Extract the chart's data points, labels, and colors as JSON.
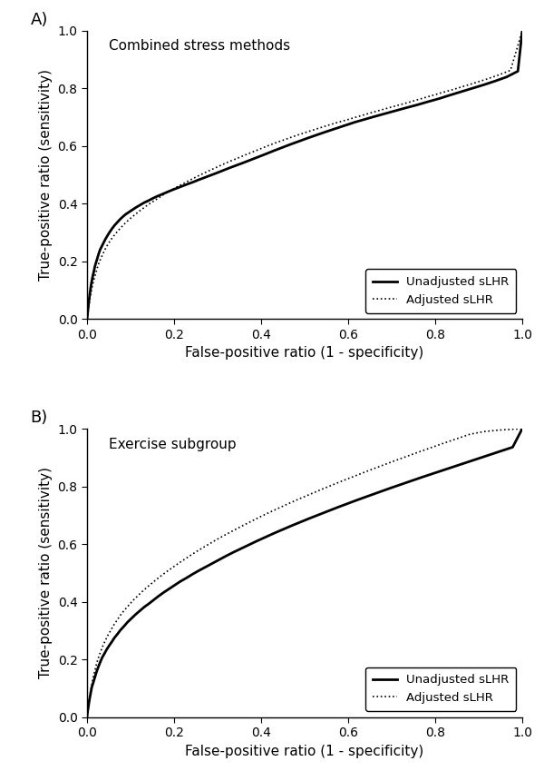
{
  "panel_A_title": "Combined stress methods",
  "panel_B_title": "Exercise subgroup",
  "xlabel": "False-positive ratio (1 - specificity)",
  "ylabel": "True-positive ratio (sensitivity)",
  "legend_unadj": "Unadjusted sLHR",
  "legend_adj": "Adjusted sLHR",
  "panel_label_A": "A)",
  "panel_label_B": "B)",
  "xlim": [
    0.0,
    1.0
  ],
  "ylim": [
    0.0,
    1.0
  ],
  "xticks": [
    0.0,
    0.2,
    0.4,
    0.6,
    0.8,
    1.0
  ],
  "yticks": [
    0.0,
    0.2,
    0.4,
    0.6,
    0.8,
    1.0
  ],
  "background_color": "#ffffff",
  "A_unadj_fpr": [
    0.0,
    0.002,
    0.004,
    0.006,
    0.008,
    0.01,
    0.013,
    0.016,
    0.018,
    0.021,
    0.024,
    0.027,
    0.03,
    0.034,
    0.038,
    0.042,
    0.047,
    0.052,
    0.057,
    0.063,
    0.069,
    0.075,
    0.082,
    0.089,
    0.097,
    0.105,
    0.113,
    0.122,
    0.131,
    0.141,
    0.151,
    0.161,
    0.172,
    0.183,
    0.194,
    0.206,
    0.218,
    0.23,
    0.243,
    0.256,
    0.27,
    0.284,
    0.298,
    0.313,
    0.328,
    0.344,
    0.36,
    0.377,
    0.394,
    0.411,
    0.429,
    0.448,
    0.467,
    0.487,
    0.507,
    0.528,
    0.549,
    0.571,
    0.593,
    0.615,
    0.638,
    0.661,
    0.685,
    0.709,
    0.733,
    0.758,
    0.783,
    0.809,
    0.834,
    0.86,
    0.886,
    0.912,
    0.938,
    0.964,
    0.99,
    1.0
  ],
  "A_unadj_tpr": [
    0.0,
    0.03,
    0.058,
    0.083,
    0.105,
    0.125,
    0.148,
    0.168,
    0.183,
    0.198,
    0.213,
    0.228,
    0.241,
    0.253,
    0.265,
    0.277,
    0.29,
    0.302,
    0.313,
    0.325,
    0.335,
    0.345,
    0.355,
    0.364,
    0.372,
    0.38,
    0.388,
    0.396,
    0.404,
    0.411,
    0.419,
    0.426,
    0.433,
    0.44,
    0.447,
    0.454,
    0.461,
    0.468,
    0.475,
    0.483,
    0.491,
    0.499,
    0.507,
    0.516,
    0.525,
    0.534,
    0.543,
    0.553,
    0.563,
    0.573,
    0.584,
    0.595,
    0.606,
    0.617,
    0.628,
    0.639,
    0.65,
    0.661,
    0.672,
    0.683,
    0.693,
    0.703,
    0.713,
    0.723,
    0.733,
    0.743,
    0.754,
    0.765,
    0.777,
    0.789,
    0.801,
    0.813,
    0.826,
    0.84,
    0.86,
    1.0
  ],
  "A_adj_fpr": [
    0.0,
    0.003,
    0.006,
    0.009,
    0.012,
    0.016,
    0.02,
    0.024,
    0.028,
    0.033,
    0.038,
    0.043,
    0.049,
    0.055,
    0.062,
    0.069,
    0.077,
    0.085,
    0.094,
    0.103,
    0.113,
    0.123,
    0.134,
    0.145,
    0.157,
    0.169,
    0.181,
    0.194,
    0.207,
    0.221,
    0.235,
    0.249,
    0.264,
    0.279,
    0.295,
    0.311,
    0.327,
    0.344,
    0.361,
    0.379,
    0.397,
    0.415,
    0.434,
    0.453,
    0.473,
    0.493,
    0.513,
    0.534,
    0.555,
    0.577,
    0.599,
    0.621,
    0.644,
    0.667,
    0.691,
    0.715,
    0.739,
    0.764,
    0.789,
    0.814,
    0.84,
    0.866,
    0.892,
    0.919,
    0.946,
    0.973,
    1.0
  ],
  "A_adj_tpr": [
    0.0,
    0.035,
    0.065,
    0.091,
    0.114,
    0.138,
    0.16,
    0.18,
    0.198,
    0.215,
    0.231,
    0.247,
    0.262,
    0.276,
    0.29,
    0.303,
    0.316,
    0.329,
    0.342,
    0.354,
    0.366,
    0.378,
    0.39,
    0.402,
    0.413,
    0.425,
    0.437,
    0.448,
    0.459,
    0.47,
    0.481,
    0.492,
    0.503,
    0.514,
    0.525,
    0.536,
    0.547,
    0.557,
    0.568,
    0.579,
    0.59,
    0.601,
    0.612,
    0.622,
    0.633,
    0.643,
    0.653,
    0.663,
    0.673,
    0.683,
    0.692,
    0.702,
    0.712,
    0.722,
    0.732,
    0.742,
    0.752,
    0.763,
    0.774,
    0.785,
    0.796,
    0.808,
    0.82,
    0.833,
    0.847,
    0.863,
    1.0
  ],
  "B_unadj_fpr": [
    0.0,
    0.001,
    0.003,
    0.005,
    0.007,
    0.009,
    0.011,
    0.014,
    0.017,
    0.02,
    0.023,
    0.027,
    0.031,
    0.035,
    0.04,
    0.045,
    0.051,
    0.057,
    0.063,
    0.07,
    0.077,
    0.085,
    0.093,
    0.102,
    0.111,
    0.121,
    0.131,
    0.142,
    0.153,
    0.164,
    0.176,
    0.188,
    0.201,
    0.214,
    0.228,
    0.242,
    0.257,
    0.272,
    0.288,
    0.304,
    0.32,
    0.337,
    0.355,
    0.373,
    0.391,
    0.41,
    0.429,
    0.449,
    0.469,
    0.49,
    0.511,
    0.533,
    0.555,
    0.577,
    0.6,
    0.623,
    0.647,
    0.671,
    0.695,
    0.72,
    0.745,
    0.77,
    0.796,
    0.822,
    0.848,
    0.874,
    0.9,
    0.926,
    0.952,
    0.978,
    1.0
  ],
  "B_unadj_tpr": [
    0.0,
    0.015,
    0.035,
    0.055,
    0.072,
    0.088,
    0.104,
    0.118,
    0.133,
    0.148,
    0.162,
    0.178,
    0.193,
    0.207,
    0.22,
    0.234,
    0.248,
    0.261,
    0.275,
    0.288,
    0.302,
    0.315,
    0.329,
    0.342,
    0.355,
    0.368,
    0.381,
    0.393,
    0.406,
    0.419,
    0.432,
    0.444,
    0.457,
    0.47,
    0.482,
    0.495,
    0.508,
    0.52,
    0.533,
    0.546,
    0.559,
    0.572,
    0.585,
    0.598,
    0.611,
    0.624,
    0.637,
    0.65,
    0.663,
    0.676,
    0.689,
    0.702,
    0.715,
    0.728,
    0.741,
    0.754,
    0.767,
    0.78,
    0.793,
    0.806,
    0.819,
    0.832,
    0.845,
    0.858,
    0.871,
    0.884,
    0.897,
    0.91,
    0.923,
    0.936,
    1.0
  ],
  "B_adj_fpr": [
    0.0,
    0.002,
    0.004,
    0.007,
    0.01,
    0.013,
    0.017,
    0.021,
    0.025,
    0.03,
    0.035,
    0.041,
    0.047,
    0.054,
    0.061,
    0.069,
    0.077,
    0.086,
    0.096,
    0.106,
    0.117,
    0.128,
    0.14,
    0.153,
    0.166,
    0.18,
    0.195,
    0.21,
    0.226,
    0.242,
    0.259,
    0.277,
    0.295,
    0.314,
    0.334,
    0.354,
    0.375,
    0.396,
    0.418,
    0.441,
    0.464,
    0.488,
    0.513,
    0.538,
    0.564,
    0.59,
    0.617,
    0.644,
    0.672,
    0.7,
    0.729,
    0.758,
    0.788,
    0.818,
    0.849,
    0.88,
    0.912,
    0.944,
    0.976,
    1.0
  ],
  "B_adj_tpr": [
    0.0,
    0.025,
    0.053,
    0.08,
    0.105,
    0.13,
    0.155,
    0.179,
    0.201,
    0.222,
    0.242,
    0.262,
    0.281,
    0.299,
    0.318,
    0.336,
    0.354,
    0.371,
    0.388,
    0.405,
    0.421,
    0.437,
    0.453,
    0.469,
    0.485,
    0.501,
    0.517,
    0.533,
    0.549,
    0.565,
    0.581,
    0.597,
    0.613,
    0.629,
    0.645,
    0.661,
    0.677,
    0.693,
    0.709,
    0.725,
    0.741,
    0.757,
    0.773,
    0.789,
    0.805,
    0.821,
    0.837,
    0.853,
    0.869,
    0.885,
    0.901,
    0.917,
    0.933,
    0.949,
    0.965,
    0.981,
    0.99,
    0.995,
    0.998,
    1.0
  ]
}
